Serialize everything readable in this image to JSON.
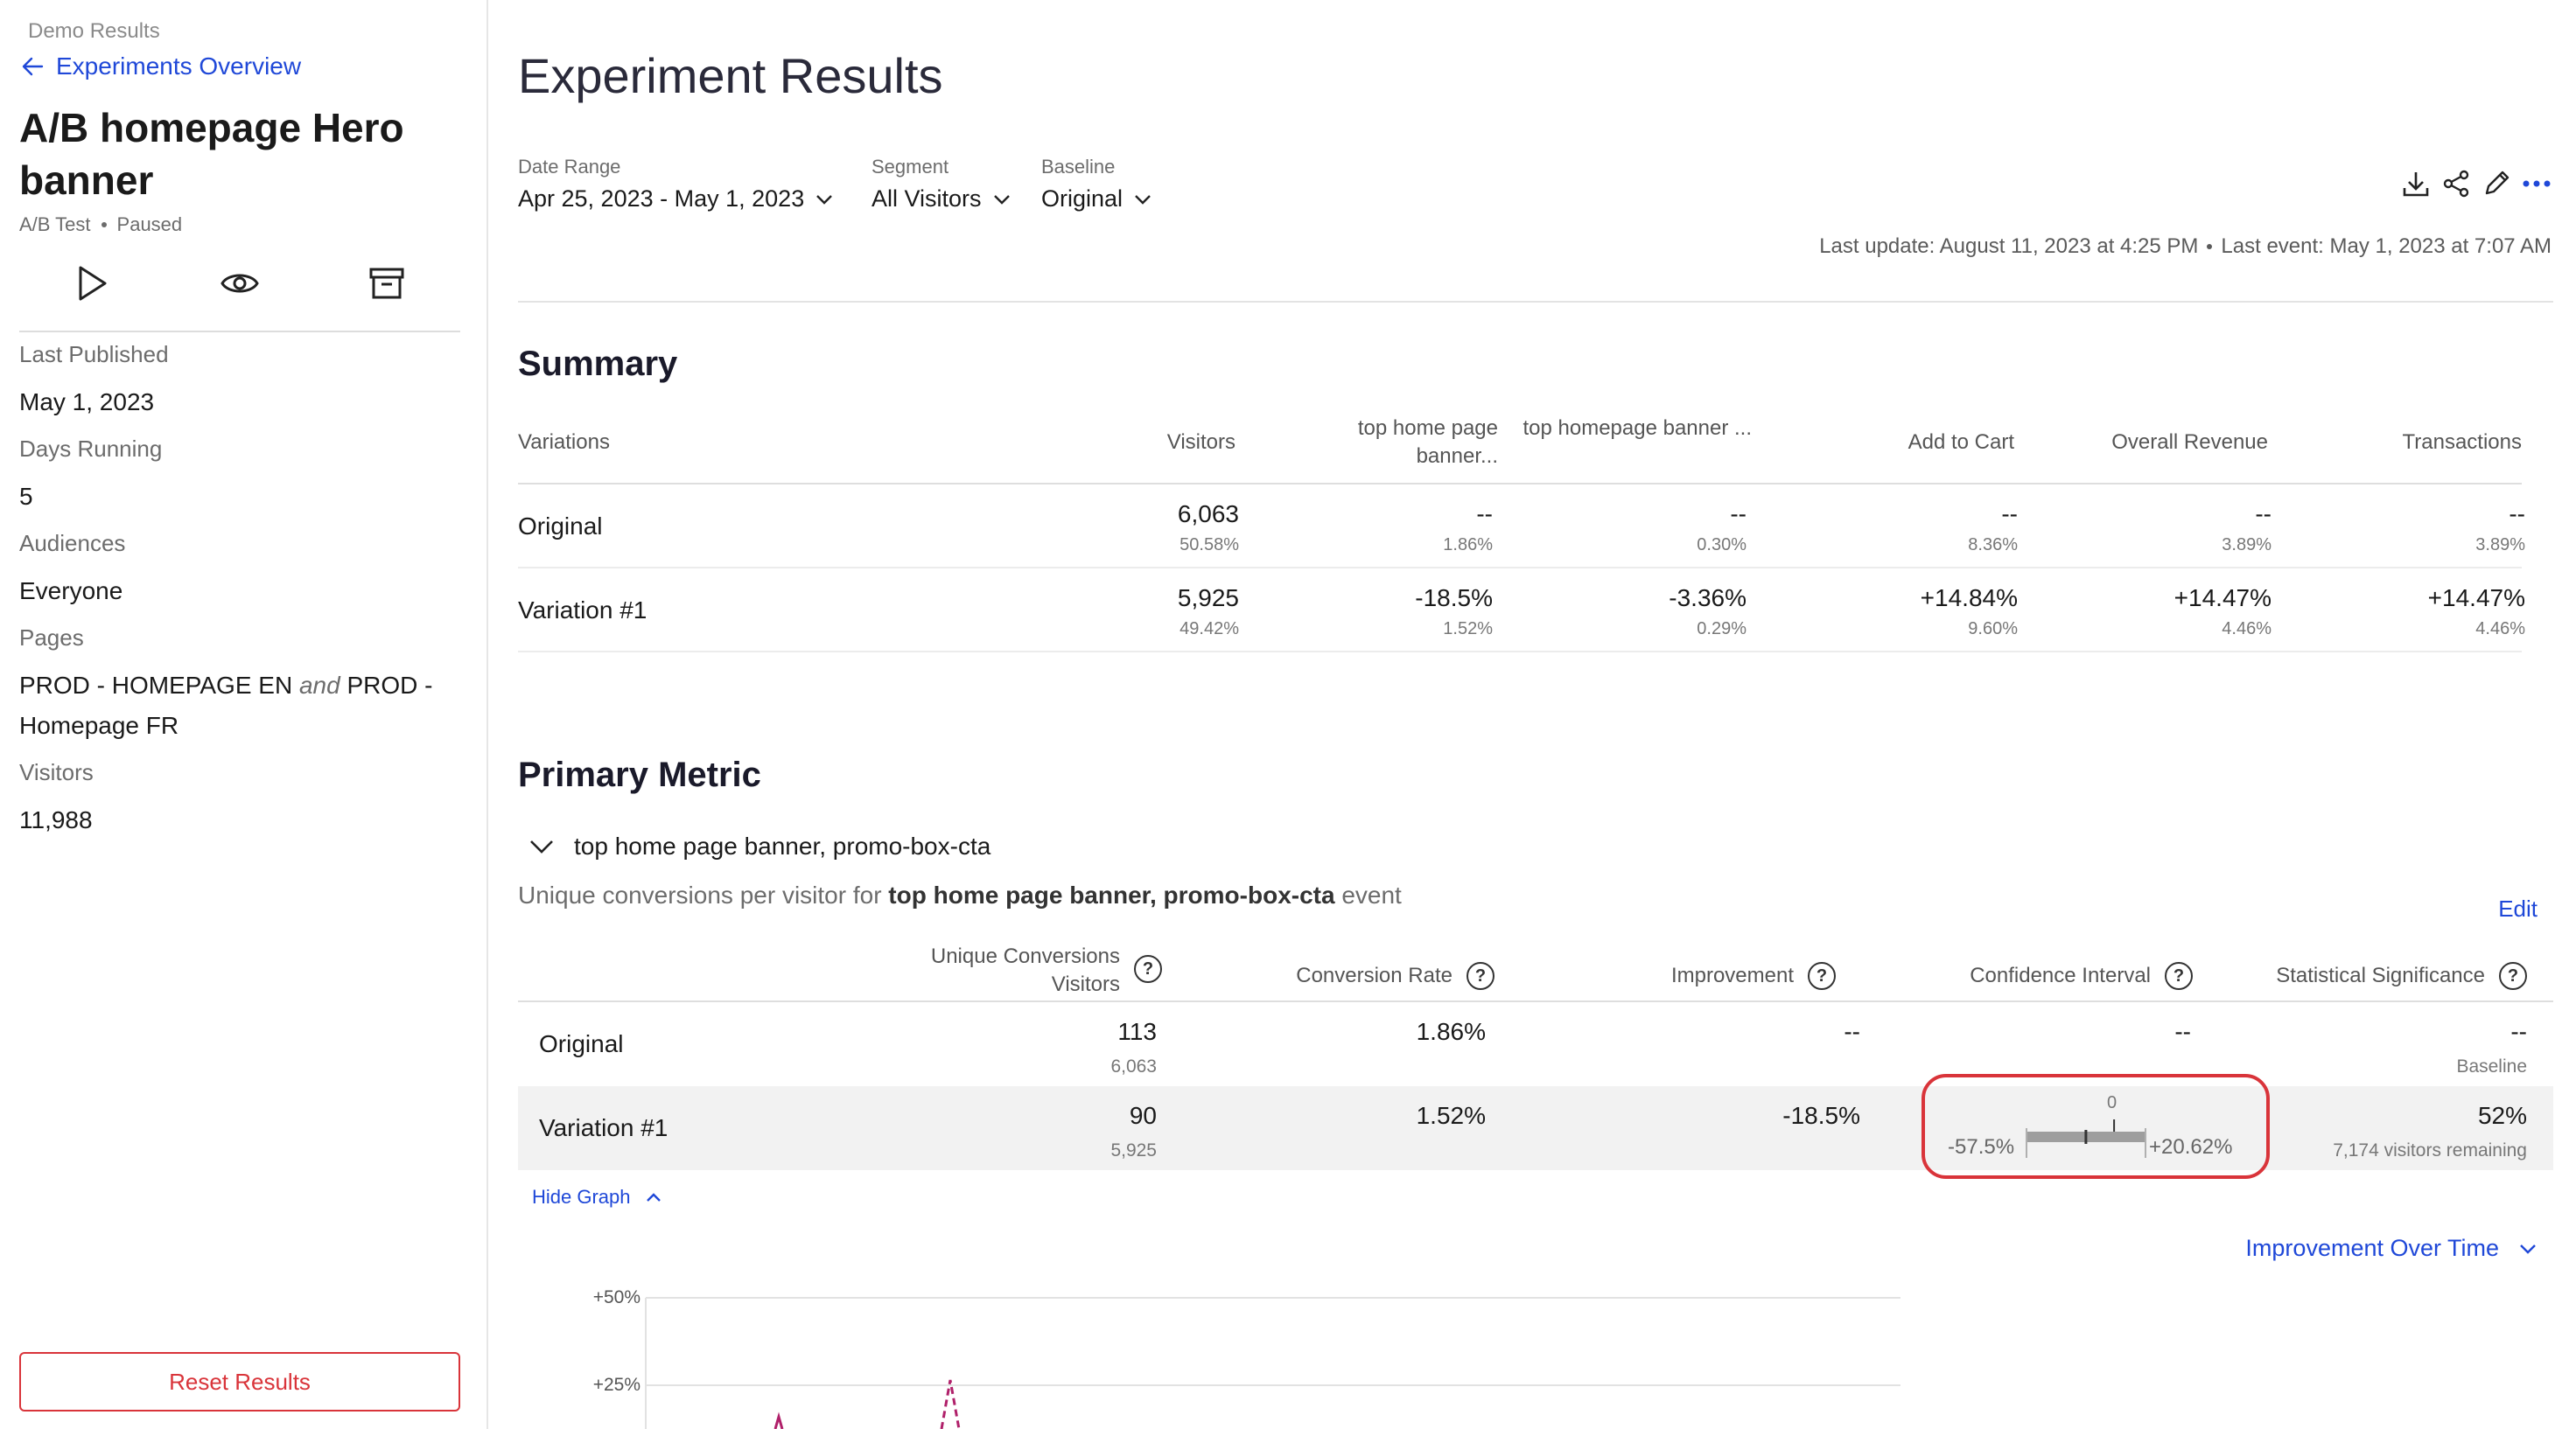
{
  "sidebar": {
    "breadcrumb": "Demo Results",
    "back_link": "Experiments Overview",
    "title": "A/B homepage Hero banner",
    "type": "A/B Test",
    "status": "Paused",
    "action_icons": [
      "play-icon",
      "eye-icon",
      "archive-icon"
    ],
    "fields": [
      {
        "label": "Last Published",
        "value": "May 1, 2023"
      },
      {
        "label": "Days Running",
        "value": "5"
      },
      {
        "label": "Audiences",
        "value": "Everyone"
      },
      {
        "label": "Pages",
        "value_part1": "PROD - HOMEPAGE EN",
        "value_joiner": "and",
        "value_part2": "PROD - Homepage FR"
      },
      {
        "label": "Visitors",
        "value": "11,988"
      }
    ],
    "reset_button": "Reset Results"
  },
  "header": {
    "title": "Experiment Results",
    "filters": [
      {
        "label": "Date Range",
        "value": "Apr 25, 2023 - May 1, 2023"
      },
      {
        "label": "Segment",
        "value": "All Visitors"
      },
      {
        "label": "Baseline",
        "value": "Original"
      }
    ],
    "toolbar_icons": [
      "download-icon",
      "share-icon",
      "edit-pencil-icon",
      "more-icon"
    ],
    "last_update": "Last update: August 11, 2023 at 4:25 PM",
    "last_event": "Last event: May 1, 2023 at 7:07 AM"
  },
  "summary": {
    "title": "Summary",
    "columns": [
      "Variations",
      "Visitors",
      "top home page banner...",
      "top homepage banner ...",
      "Add to Cart",
      "Overall Revenue",
      "Transactions"
    ],
    "rows": [
      {
        "name": "Original",
        "cells": [
          {
            "v": "6,063",
            "s": "50.58%"
          },
          {
            "v": "--",
            "s": "1.86%"
          },
          {
            "v": "--",
            "s": "0.30%"
          },
          {
            "v": "--",
            "s": "8.36%"
          },
          {
            "v": "--",
            "s": "3.89%"
          },
          {
            "v": "--",
            "s": "3.89%"
          }
        ]
      },
      {
        "name": "Variation #1",
        "cells": [
          {
            "v": "5,925",
            "s": "49.42%"
          },
          {
            "v": "-18.5%",
            "s": "1.52%"
          },
          {
            "v": "-3.36%",
            "s": "0.29%"
          },
          {
            "v": "+14.84%",
            "s": "9.60%"
          },
          {
            "v": "+14.47%",
            "s": "4.46%"
          },
          {
            "v": "+14.47%",
            "s": "4.46%"
          }
        ]
      }
    ]
  },
  "primary_metric": {
    "title": "Primary Metric",
    "metric_name": "top home page banner, promo-box-cta",
    "desc_prefix": "Unique conversions per visitor for",
    "desc_metric": "top home page banner, promo-box-cta",
    "desc_suffix": "event",
    "edit_label": "Edit",
    "columns": {
      "unique_line1": "Unique Conversions",
      "unique_line2": "Visitors",
      "conversion_rate": "Conversion Rate",
      "improvement": "Improvement",
      "confidence_interval": "Confidence Interval",
      "significance": "Statistical Significance"
    },
    "rows": [
      {
        "name": "Original",
        "conversions": "113",
        "visitors": "6,063",
        "rate": "1.86%",
        "improvement": "--",
        "ci": "--",
        "significance": "--",
        "significance_sub": "Baseline"
      },
      {
        "name": "Variation #1",
        "conversions": "90",
        "visitors": "5,925",
        "rate": "1.52%",
        "improvement": "-18.5%",
        "significance": "52%",
        "significance_sub": "7,174 visitors remaining"
      }
    ],
    "ci": {
      "zero_label": "0",
      "low_label": "-57.5%",
      "high_label": "+20.62%",
      "low": -57.5,
      "high": 20.62,
      "point": -18.5
    },
    "hide_graph": "Hide Graph",
    "graph_select": "Improvement Over Time",
    "graph_ticks": [
      "+50%",
      "+25%"
    ]
  },
  "colors": {
    "accent": "#1f48d8",
    "danger": "#d9343a",
    "series": "#b0206a"
  }
}
